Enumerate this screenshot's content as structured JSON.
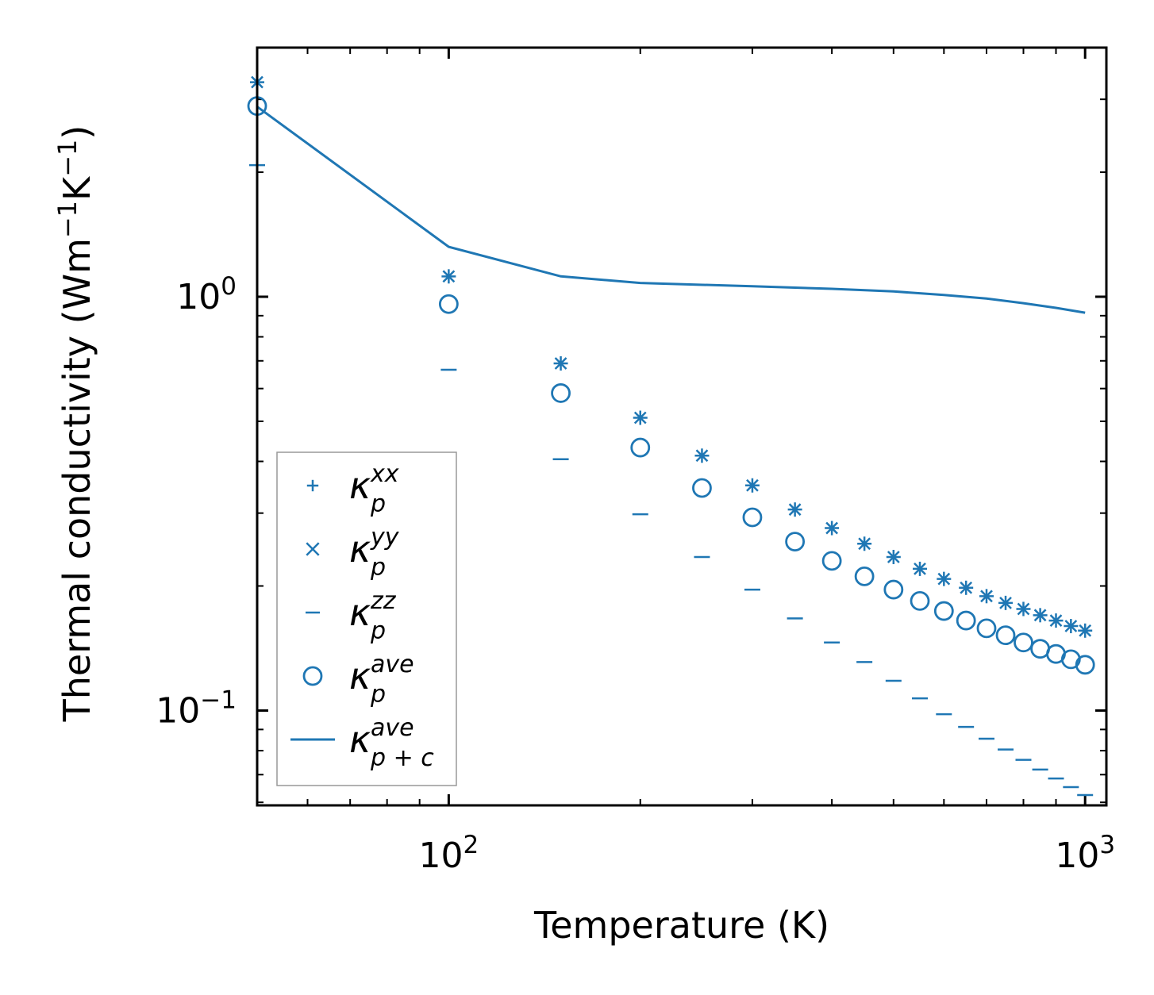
{
  "chart_data": {
    "type": "scatter",
    "xscale": "log",
    "yscale": "log",
    "xlim": [
      50,
      1080
    ],
    "ylim": [
      0.059,
      4.0
    ],
    "xlabel": "Temperature (K)",
    "ylabel": {
      "main": "Thermal conductivity (Wm",
      "sup1": "−1",
      "mid": "K",
      "sup2": "−1",
      "close": ")"
    },
    "x_ticks": [
      {
        "value": 100,
        "base": "10",
        "exp": "2"
      },
      {
        "value": 1000,
        "base": "10",
        "exp": "3"
      }
    ],
    "y_ticks": [
      {
        "value": 1,
        "base": "10",
        "exp": "0"
      },
      {
        "value": 0.1,
        "base": "10",
        "exp": "−1"
      }
    ],
    "color": "#1f77b4",
    "x": [
      50,
      100,
      150,
      200,
      250,
      300,
      350,
      400,
      450,
      500,
      550,
      600,
      650,
      700,
      750,
      800,
      850,
      900,
      950,
      1000
    ],
    "series": [
      {
        "name": "kappa_p_xx",
        "marker": "plus",
        "values": [
          3.3,
          1.12,
          0.69,
          0.51,
          0.413,
          0.35,
          0.306,
          0.276,
          0.253,
          0.235,
          0.22,
          0.208,
          0.198,
          0.189,
          0.182,
          0.176,
          0.17,
          0.165,
          0.16,
          0.156
        ]
      },
      {
        "name": "kappa_p_yy",
        "marker": "x",
        "values": [
          3.3,
          1.12,
          0.69,
          0.51,
          0.413,
          0.35,
          0.306,
          0.276,
          0.253,
          0.235,
          0.22,
          0.208,
          0.198,
          0.189,
          0.182,
          0.176,
          0.17,
          0.165,
          0.16,
          0.156
        ]
      },
      {
        "name": "kappa_p_zz",
        "marker": "hline",
        "values": [
          2.08,
          0.666,
          0.405,
          0.298,
          0.235,
          0.196,
          0.167,
          0.146,
          0.131,
          0.118,
          0.107,
          0.098,
          0.0913,
          0.0855,
          0.0805,
          0.076,
          0.072,
          0.0685,
          0.0653,
          0.0625
        ]
      },
      {
        "name": "kappa_p_ave",
        "marker": "circle",
        "values": [
          2.89,
          0.96,
          0.585,
          0.432,
          0.345,
          0.293,
          0.256,
          0.23,
          0.211,
          0.196,
          0.184,
          0.174,
          0.165,
          0.158,
          0.152,
          0.146,
          0.141,
          0.137,
          0.133,
          0.129
        ]
      },
      {
        "name": "kappa_pc_ave",
        "marker": "line",
        "x": [
          50,
          100,
          150,
          200,
          300,
          400,
          500,
          600,
          700,
          800,
          900,
          1000
        ],
        "values": [
          2.88,
          1.32,
          1.12,
          1.08,
          1.06,
          1.045,
          1.03,
          1.01,
          0.99,
          0.965,
          0.94,
          0.915
        ]
      }
    ],
    "legend": {
      "position": "lower-left",
      "entries": [
        {
          "marker": "plus",
          "sym": "κ",
          "sub": "p",
          "sup": "xx"
        },
        {
          "marker": "x",
          "sym": "κ",
          "sub": "p",
          "sup": "yy"
        },
        {
          "marker": "hline",
          "sym": "κ",
          "sub": "p",
          "sup": "zz"
        },
        {
          "marker": "circle",
          "sym": "κ",
          "sub": "p",
          "sup": "ave"
        },
        {
          "marker": "line",
          "sym": "κ",
          "sub": "p + c",
          "sup": "ave"
        }
      ]
    }
  }
}
